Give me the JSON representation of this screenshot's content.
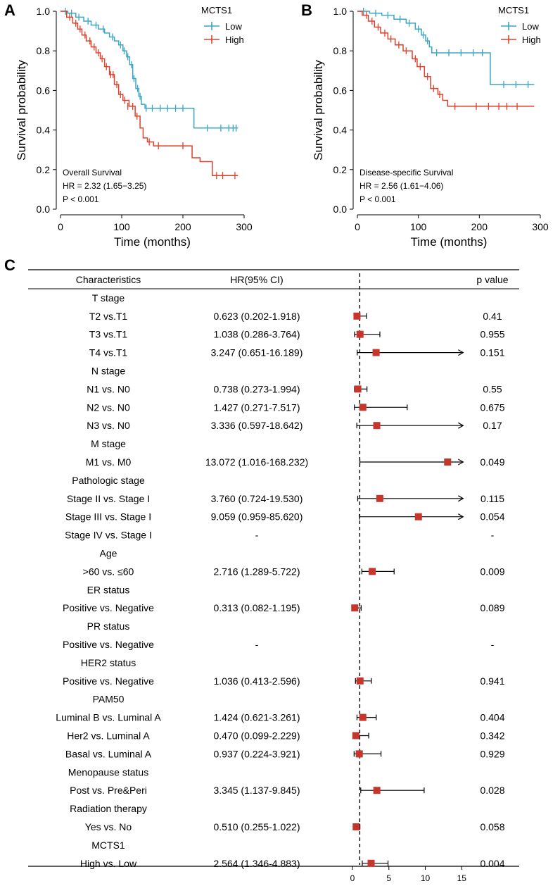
{
  "panels": {
    "A": {
      "letter": "A"
    },
    "B": {
      "letter": "B"
    },
    "C": {
      "letter": "C"
    }
  },
  "colors": {
    "low": "#3aa6c4",
    "high": "#e0402b",
    "marker": "#c8352b",
    "axis": "#000000"
  },
  "chart_data": [
    {
      "type": "line",
      "panel": "A",
      "title": "",
      "xlabel": "Time (months)",
      "ylabel": "Survival probability",
      "xlim": [
        0,
        300
      ],
      "ylim": [
        0,
        1
      ],
      "xticks": [
        "0",
        "100",
        "200",
        "300"
      ],
      "yticks": [
        "0.0",
        "0.2",
        "0.4",
        "0.6",
        "0.8",
        "1.0"
      ],
      "legend_title": "MCTS1",
      "legend_position": "top-right",
      "annotations": [
        "Overall Survival",
        "HR = 2.32 (1.65−3.25)",
        "P < 0.001"
      ],
      "series": [
        {
          "name": "Low",
          "color": "#3aa6c4",
          "x": [
            0,
            12,
            25,
            38,
            50,
            62,
            72,
            80,
            88,
            95,
            102,
            108,
            113,
            118,
            123,
            128,
            132,
            138,
            218,
            290
          ],
          "y": [
            1.0,
            0.99,
            0.97,
            0.95,
            0.93,
            0.91,
            0.89,
            0.87,
            0.85,
            0.83,
            0.8,
            0.77,
            0.73,
            0.66,
            0.61,
            0.57,
            0.53,
            0.51,
            0.41,
            0.41
          ],
          "censor_x": [
            8,
            18,
            30,
            45,
            58,
            70,
            85,
            98,
            104,
            110,
            116,
            120,
            126,
            130,
            140,
            150,
            163,
            175,
            188,
            200,
            240,
            262,
            275,
            282,
            287
          ],
          "censor_y": [
            1.0,
            0.99,
            0.97,
            0.95,
            0.93,
            0.91,
            0.87,
            0.83,
            0.8,
            0.77,
            0.73,
            0.66,
            0.61,
            0.57,
            0.51,
            0.51,
            0.51,
            0.51,
            0.51,
            0.51,
            0.41,
            0.41,
            0.41,
            0.41,
            0.41
          ]
        },
        {
          "name": "High",
          "color": "#e0402b",
          "x": [
            0,
            10,
            20,
            28,
            35,
            42,
            50,
            58,
            65,
            72,
            80,
            88,
            95,
            102,
            112,
            122,
            130,
            135,
            142,
            152,
            215,
            228,
            248,
            290
          ],
          "y": [
            1.0,
            0.97,
            0.94,
            0.91,
            0.88,
            0.85,
            0.82,
            0.79,
            0.76,
            0.72,
            0.68,
            0.63,
            0.58,
            0.55,
            0.52,
            0.47,
            0.41,
            0.36,
            0.34,
            0.32,
            0.26,
            0.24,
            0.17,
            0.17
          ],
          "censor_x": [
            15,
            25,
            32,
            40,
            48,
            55,
            62,
            68,
            75,
            82,
            86,
            92,
            98,
            105,
            110,
            118,
            125,
            145,
            160,
            200,
            255,
            265,
            285
          ],
          "censor_y": [
            0.97,
            0.94,
            0.91,
            0.88,
            0.85,
            0.82,
            0.79,
            0.76,
            0.72,
            0.68,
            0.68,
            0.63,
            0.58,
            0.55,
            0.52,
            0.52,
            0.47,
            0.34,
            0.32,
            0.32,
            0.17,
            0.17,
            0.17
          ]
        }
      ]
    },
    {
      "type": "line",
      "panel": "B",
      "title": "",
      "xlabel": "Time (months)",
      "ylabel": "Survival probability",
      "xlim": [
        0,
        300
      ],
      "ylim": [
        0,
        1
      ],
      "xticks": [
        "0",
        "100",
        "200",
        "300"
      ],
      "yticks": [
        "0.0",
        "0.2",
        "0.4",
        "0.6",
        "0.8",
        "1.0"
      ],
      "legend_title": "MCTS1",
      "legend_position": "top-right",
      "annotations": [
        "Disease-specific Survival",
        "HR = 2.56 (1.61−4.06)",
        "P < 0.001"
      ],
      "series": [
        {
          "name": "Low",
          "color": "#3aa6c4",
          "x": [
            0,
            20,
            40,
            60,
            80,
            95,
            105,
            112,
            118,
            122,
            218,
            290
          ],
          "y": [
            1.0,
            0.99,
            0.98,
            0.96,
            0.94,
            0.91,
            0.88,
            0.85,
            0.82,
            0.79,
            0.63,
            0.63
          ],
          "censor_x": [
            10,
            30,
            50,
            70,
            85,
            100,
            108,
            115,
            130,
            150,
            170,
            190,
            205,
            240,
            260,
            280
          ],
          "censor_y": [
            1.0,
            0.99,
            0.98,
            0.96,
            0.94,
            0.91,
            0.88,
            0.85,
            0.79,
            0.79,
            0.79,
            0.79,
            0.79,
            0.63,
            0.63,
            0.63
          ]
        },
        {
          "name": "High",
          "color": "#e0402b",
          "x": [
            0,
            8,
            18,
            28,
            38,
            50,
            62,
            75,
            90,
            98,
            110,
            120,
            132,
            140,
            148,
            290
          ],
          "y": [
            1.0,
            0.98,
            0.95,
            0.92,
            0.89,
            0.86,
            0.83,
            0.8,
            0.76,
            0.72,
            0.67,
            0.61,
            0.58,
            0.55,
            0.52,
            0.52
          ],
          "censor_x": [
            15,
            24,
            34,
            45,
            55,
            68,
            80,
            95,
            103,
            115,
            125,
            135,
            160,
            195,
            215,
            232,
            245,
            262
          ],
          "censor_y": [
            0.98,
            0.95,
            0.92,
            0.89,
            0.86,
            0.83,
            0.8,
            0.76,
            0.72,
            0.67,
            0.61,
            0.58,
            0.52,
            0.52,
            0.52,
            0.52,
            0.52,
            0.52
          ]
        }
      ]
    },
    {
      "type": "forest",
      "panel": "C",
      "columns": {
        "characteristic": "Characteristics",
        "hr": "HR(95% CI)",
        "p": "p value"
      },
      "xlim": [
        0,
        15
      ],
      "xticks": [
        "0",
        "5",
        "10",
        "15"
      ],
      "reference_line": 1,
      "rows": [
        {
          "label": "T stage",
          "header": true
        },
        {
          "label": "T2 vs.T1",
          "hr_text": "0.623 (0.202-1.918)",
          "p": "0.41",
          "hr": 0.623,
          "lo": 0.202,
          "hi": 1.918
        },
        {
          "label": "T3 vs.T1",
          "hr_text": "1.038 (0.286-3.764)",
          "p": "0.955",
          "hr": 1.038,
          "lo": 0.286,
          "hi": 3.764
        },
        {
          "label": "T4 vs.T1",
          "hr_text": "3.247 (0.651-16.189)",
          "p": "0.151",
          "hr": 3.247,
          "lo": 0.651,
          "hi": 16.189
        },
        {
          "label": "N stage",
          "header": true
        },
        {
          "label": "N1 vs. N0",
          "hr_text": "0.738 (0.273-1.994)",
          "p": "0.55",
          "hr": 0.738,
          "lo": 0.273,
          "hi": 1.994
        },
        {
          "label": "N2 vs. N0",
          "hr_text": "1.427 (0.271-7.517)",
          "p": "0.675",
          "hr": 1.427,
          "lo": 0.271,
          "hi": 7.517
        },
        {
          "label": "N3 vs. N0",
          "hr_text": "3.336 (0.597-18.642)",
          "p": "0.17",
          "hr": 3.336,
          "lo": 0.597,
          "hi": 18.642
        },
        {
          "label": "M stage",
          "header": true
        },
        {
          "label": "M1 vs. M0",
          "hr_text": "13.072 (1.016-168.232)",
          "p": "0.049",
          "hr": 13.072,
          "lo": 1.016,
          "hi": 168.232
        },
        {
          "label": "Pathologic stage",
          "header": true
        },
        {
          "label": "Stage II vs. Stage I",
          "hr_text": "3.760 (0.724-19.530)",
          "p": "0.115",
          "hr": 3.76,
          "lo": 0.724,
          "hi": 19.53
        },
        {
          "label": "Stage III vs. Stage I",
          "hr_text": "9.059 (0.959-85.620)",
          "p": "0.054",
          "hr": 9.059,
          "lo": 0.959,
          "hi": 85.62
        },
        {
          "label": "Stage IV vs. Stage I",
          "hr_text": "-",
          "p": "-"
        },
        {
          "label": "Age",
          "header": true
        },
        {
          "label": ">60 vs. ≤60",
          "hr_text": "2.716 (1.289-5.722)",
          "p": "0.009",
          "hr": 2.716,
          "lo": 1.289,
          "hi": 5.722
        },
        {
          "label": "ER status",
          "header": true
        },
        {
          "label": "Positive vs. Negative",
          "hr_text": "0.313 (0.082-1.195)",
          "p": "0.089",
          "hr": 0.313,
          "lo": 0.082,
          "hi": 1.195
        },
        {
          "label": "PR status",
          "header": true
        },
        {
          "label": "Positive vs. Negative",
          "hr_text": "-",
          "p": "-"
        },
        {
          "label": "HER2 status",
          "header": true
        },
        {
          "label": "Positive vs. Negative",
          "hr_text": "1.036 (0.413-2.596)",
          "p": "0.941",
          "hr": 1.036,
          "lo": 0.413,
          "hi": 2.596
        },
        {
          "label": "PAM50",
          "header": true
        },
        {
          "label": "Luminal B vs. Luminal A",
          "hr_text": "1.424 (0.621-3.261)",
          "p": "0.404",
          "hr": 1.424,
          "lo": 0.621,
          "hi": 3.261
        },
        {
          "label": "Her2 vs. Luminal A",
          "hr_text": "0.470 (0.099-2.229)",
          "p": "0.342",
          "hr": 0.47,
          "lo": 0.099,
          "hi": 2.229
        },
        {
          "label": "Basal vs. Luminal A",
          "hr_text": "0.937 (0.224-3.921)",
          "p": "0.929",
          "hr": 0.937,
          "lo": 0.224,
          "hi": 3.921
        },
        {
          "label": "Menopause status",
          "header": true
        },
        {
          "label": "Post vs. Pre&Peri",
          "hr_text": "3.345 (1.137-9.845)",
          "p": "0.028",
          "hr": 3.345,
          "lo": 1.137,
          "hi": 9.845
        },
        {
          "label": "Radiation therapy",
          "header": true
        },
        {
          "label": "Yes vs. No",
          "hr_text": "0.510 (0.255-1.022)",
          "p": "0.058",
          "hr": 0.51,
          "lo": 0.255,
          "hi": 1.022
        },
        {
          "label": "MCTS1",
          "header": true
        },
        {
          "label": "High vs. Low",
          "hr_text": "2.564 (1.346-4.883)",
          "p": "0.004",
          "hr": 2.564,
          "lo": 1.346,
          "hi": 4.883
        }
      ]
    }
  ]
}
